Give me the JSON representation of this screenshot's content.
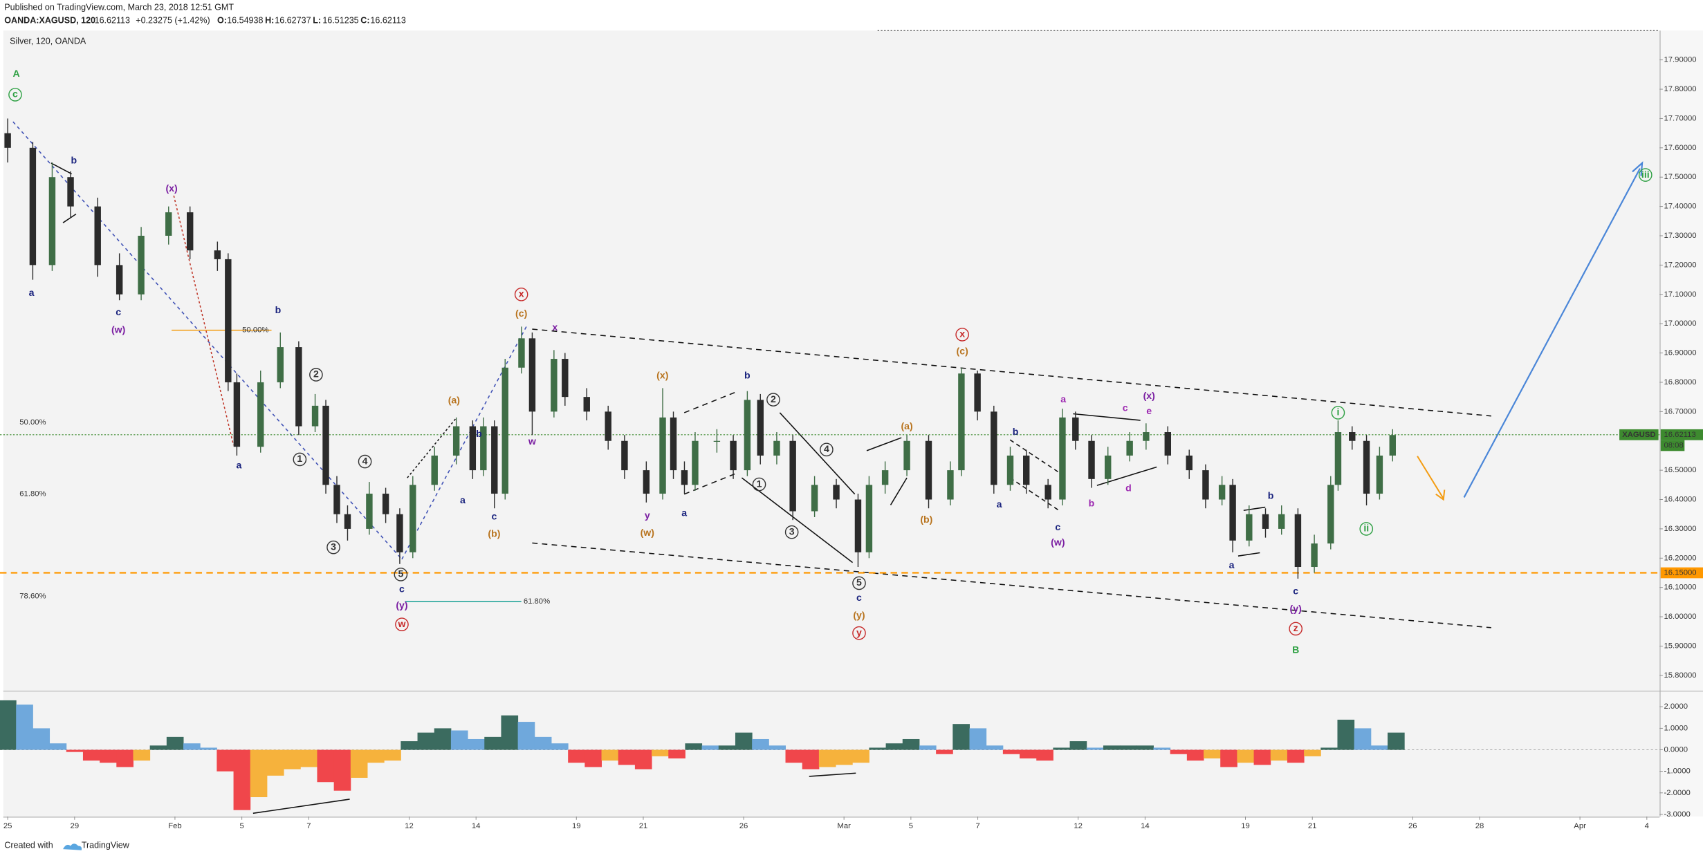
{
  "header": {
    "published": "Published on TradingView.com, March 23, 2018 12:51 GMT",
    "symbol": "OANDA:XAGUSD, 120",
    "last": "16.62113",
    "change": "+0.23275 (+1.42%)",
    "ohlc": [
      {
        "label": "O:",
        "value": "16.54938"
      },
      {
        "label": "H:",
        "value": "16.62737"
      },
      {
        "label": "L:",
        "value": "16.51235"
      },
      {
        "label": "C:",
        "value": "16.62113"
      }
    ],
    "pane_title": "Silver, 120, OANDA"
  },
  "footer": {
    "created": "Created with",
    "brand": "TradingView"
  },
  "chart_data": [
    {
      "type": "candlestick",
      "title": "Silver, 120, OANDA",
      "x": [
        0,
        0.75,
        1.33,
        1.88,
        2.69,
        3.34,
        3.99,
        4.81,
        5.45,
        6.27,
        6.59,
        6.85,
        7.56,
        8.15,
        8.7,
        9.19,
        9.51,
        9.84,
        10.16,
        10.81,
        11.3,
        11.72,
        12.11,
        12.76,
        13.41,
        13.9,
        14.22,
        14.55,
        14.87,
        15.36,
        15.68,
        16.33,
        16.66,
        17.31,
        17.95,
        18.44,
        19.09,
        19.58,
        19.9,
        20.23,
        20.55,
        21.2,
        21.69,
        22.11,
        22.5,
        22.99,
        23.47,
        24.12,
        24.77,
        25.42,
        25.75,
        26.23,
        26.88,
        27.53,
        28.18,
        28.51,
        28.99,
        29.48,
        29.97,
        30.45,
        31.1,
        31.53,
        31.92,
        32.4,
        32.89,
        33.54,
        34.03,
        34.68,
        35.32,
        35.81,
        36.3,
        36.62,
        37.11,
        37.6,
        38.08,
        38.57,
        39.06,
        39.55,
        39.77,
        40.19,
        40.62,
        41.01,
        41.4
      ],
      "open": [
        17.65,
        17.6,
        17.2,
        17.5,
        17.4,
        17.2,
        17.1,
        17.3,
        17.38,
        17.25,
        17.22,
        16.8,
        16.58,
        16.8,
        16.92,
        16.65,
        16.72,
        16.45,
        16.35,
        16.3,
        16.42,
        16.35,
        16.22,
        16.45,
        16.55,
        16.65,
        16.5,
        16.65,
        16.42,
        16.85,
        16.95,
        16.7,
        16.88,
        16.75,
        16.7,
        16.6,
        16.5,
        16.42,
        16.68,
        16.5,
        16.45,
        16.6,
        16.6,
        16.5,
        16.74,
        16.55,
        16.6,
        16.36,
        16.45,
        16.4,
        16.22,
        16.45,
        16.5,
        16.6,
        16.4,
        16.5,
        16.83,
        16.7,
        16.45,
        16.55,
        16.45,
        16.4,
        16.68,
        16.6,
        16.47,
        16.55,
        16.6,
        16.63,
        16.55,
        16.5,
        16.4,
        16.45,
        16.26,
        16.35,
        16.3,
        16.35,
        16.17,
        16.25,
        16.45,
        16.63,
        16.6,
        16.42,
        16.55
      ],
      "high": [
        17.7,
        17.62,
        17.55,
        17.52,
        17.43,
        17.24,
        17.33,
        17.4,
        17.4,
        17.28,
        17.24,
        16.83,
        16.84,
        16.97,
        16.94,
        16.76,
        16.74,
        16.48,
        16.38,
        16.46,
        16.44,
        16.37,
        16.48,
        16.58,
        16.68,
        16.67,
        16.68,
        16.67,
        16.88,
        16.99,
        16.97,
        16.91,
        16.9,
        16.78,
        16.72,
        16.62,
        16.53,
        16.78,
        16.7,
        16.53,
        16.63,
        16.64,
        16.62,
        16.77,
        16.76,
        16.63,
        16.62,
        16.48,
        16.47,
        16.42,
        16.48,
        16.53,
        16.62,
        16.62,
        16.53,
        16.85,
        16.84,
        16.72,
        16.58,
        16.57,
        16.47,
        16.71,
        16.7,
        16.62,
        16.58,
        16.63,
        16.66,
        16.65,
        16.57,
        16.52,
        16.48,
        16.47,
        16.38,
        16.37,
        16.38,
        16.37,
        16.28,
        16.48,
        16.67,
        16.65,
        16.62,
        16.58,
        16.64
      ],
      "low": [
        17.55,
        17.15,
        17.18,
        17.36,
        17.16,
        17.08,
        17.08,
        17.27,
        17.22,
        17.18,
        16.77,
        16.55,
        16.56,
        16.78,
        16.62,
        16.63,
        16.42,
        16.32,
        16.26,
        16.28,
        16.32,
        16.18,
        16.2,
        16.43,
        16.52,
        16.47,
        16.48,
        16.37,
        16.4,
        16.83,
        16.62,
        16.68,
        16.72,
        16.67,
        16.57,
        16.47,
        16.39,
        16.4,
        16.47,
        16.42,
        16.43,
        16.56,
        16.47,
        16.48,
        16.52,
        16.52,
        16.33,
        16.34,
        16.37,
        16.17,
        16.2,
        16.42,
        16.48,
        16.37,
        16.38,
        16.48,
        16.67,
        16.42,
        16.43,
        16.42,
        16.37,
        16.38,
        16.57,
        16.44,
        16.45,
        16.53,
        16.57,
        16.52,
        16.47,
        16.37,
        16.38,
        16.22,
        16.24,
        16.27,
        16.28,
        16.13,
        16.15,
        16.23,
        16.43,
        16.57,
        16.38,
        16.4,
        16.53
      ],
      "close": [
        17.6,
        17.2,
        17.5,
        17.4,
        17.2,
        17.1,
        17.3,
        17.38,
        17.25,
        17.22,
        16.8,
        16.58,
        16.8,
        16.92,
        16.65,
        16.72,
        16.45,
        16.35,
        16.3,
        16.42,
        16.35,
        16.22,
        16.45,
        16.55,
        16.65,
        16.5,
        16.65,
        16.42,
        16.85,
        16.95,
        16.7,
        16.88,
        16.75,
        16.7,
        16.6,
        16.5,
        16.42,
        16.68,
        16.5,
        16.45,
        16.6,
        16.6,
        16.5,
        16.74,
        16.55,
        16.6,
        16.36,
        16.45,
        16.4,
        16.22,
        16.45,
        16.5,
        16.6,
        16.4,
        16.5,
        16.83,
        16.7,
        16.45,
        16.55,
        16.45,
        16.4,
        16.68,
        16.6,
        16.47,
        16.55,
        16.6,
        16.63,
        16.55,
        16.5,
        16.4,
        16.45,
        16.26,
        16.35,
        16.3,
        16.35,
        16.17,
        16.25,
        16.45,
        16.63,
        16.6,
        16.42,
        16.55,
        16.62
      ],
      "up_color": "#3f6e46",
      "down_color": "#2b2b2b",
      "xlim": [
        -0.23,
        49.38
      ],
      "xticks": [
        {
          "value": 0,
          "label": "25"
        },
        {
          "value": 2,
          "label": "29"
        },
        {
          "value": 5,
          "label": "Feb"
        },
        {
          "value": 7,
          "label": "5"
        },
        {
          "value": 9,
          "label": "7"
        },
        {
          "value": 12,
          "label": "12"
        },
        {
          "value": 14,
          "label": "14"
        },
        {
          "value": 17,
          "label": "19"
        },
        {
          "value": 19,
          "label": "21"
        },
        {
          "value": 22,
          "label": "26"
        },
        {
          "value": 25,
          "label": "Mar"
        },
        {
          "value": 27,
          "label": "5"
        },
        {
          "value": 29,
          "label": "7"
        },
        {
          "value": 32,
          "label": "12"
        },
        {
          "value": 34,
          "label": "14"
        },
        {
          "value": 37,
          "label": "19"
        },
        {
          "value": 39,
          "label": "21"
        },
        {
          "value": 42,
          "label": "26"
        },
        {
          "value": 44,
          "label": "28"
        },
        {
          "value": 47,
          "label": "Apr"
        },
        {
          "value": 49,
          "label": "4"
        }
      ],
      "ylim": [
        15.748,
        18.0
      ],
      "yticks": [
        {
          "value": 15.8,
          "label": "15.80000"
        },
        {
          "value": 15.9,
          "label": "15.90000"
        },
        {
          "value": 16.0,
          "label": "16.00000"
        },
        {
          "value": 16.1,
          "label": "16.10000"
        },
        {
          "value": 16.2,
          "label": "16.20000"
        },
        {
          "value": 16.3,
          "label": "16.30000"
        },
        {
          "value": 16.4,
          "label": "16.40000"
        },
        {
          "value": 16.5,
          "label": "16.50000"
        },
        {
          "value": 16.7,
          "label": "16.70000"
        },
        {
          "value": 16.8,
          "label": "16.80000"
        },
        {
          "value": 16.9,
          "label": "16.90000"
        },
        {
          "value": 17.0,
          "label": "17.00000"
        },
        {
          "value": 17.1,
          "label": "17.10000"
        },
        {
          "value": 17.2,
          "label": "17.20000"
        },
        {
          "value": 17.3,
          "label": "17.30000"
        },
        {
          "value": 17.4,
          "label": "17.40000"
        },
        {
          "value": 17.5,
          "label": "17.50000"
        },
        {
          "value": 17.6,
          "label": "17.60000"
        },
        {
          "value": 17.7,
          "label": "17.70000"
        },
        {
          "value": 17.8,
          "label": "17.80000"
        },
        {
          "value": 17.9,
          "label": "17.90000"
        }
      ],
      "grid": false,
      "last_price": {
        "value": 16.62113,
        "label": "16.62113",
        "symbol": "XAGUSD",
        "countdown": "08:08",
        "color": "#3d8a2f"
      },
      "levels": [
        {
          "value": 16.15,
          "label": "16.15000",
          "color": "#ff9800"
        }
      ],
      "fib_labels": [
        {
          "text": "50.00%",
          "color": "#f39c12"
        },
        {
          "text": "61.80%",
          "color": "#3f51b5"
        },
        {
          "text": "78.60%",
          "color": "#e53935"
        },
        {
          "text": "50.00%",
          "color": "#f39c12"
        },
        {
          "text": "61.80%",
          "color": "#26a69a"
        }
      ],
      "annotations": [
        {
          "text": "A",
          "color": "#2ea043"
        },
        {
          "text": "c",
          "color": "#2ea043",
          "circled": true
        },
        {
          "text": "a",
          "color": "#1a237e"
        },
        {
          "text": "b",
          "color": "#1a237e"
        },
        {
          "text": "c",
          "color": "#1a237e"
        },
        {
          "text": "(w)",
          "color": "#7b1fa2"
        },
        {
          "text": "(x)",
          "color": "#7b1fa2"
        },
        {
          "text": "a",
          "color": "#1a237e"
        },
        {
          "text": "b",
          "color": "#1a237e"
        },
        {
          "text": "1",
          "color": "#333333",
          "circled": true
        },
        {
          "text": "2",
          "color": "#333333",
          "circled": true
        },
        {
          "text": "3",
          "color": "#333333",
          "circled": true
        },
        {
          "text": "4",
          "color": "#333333",
          "circled": true
        },
        {
          "text": "5",
          "color": "#333333",
          "circled": true
        },
        {
          "text": "c",
          "color": "#1a237e"
        },
        {
          "text": "(y)",
          "color": "#7b1fa2"
        },
        {
          "text": "w",
          "color": "#c62828",
          "circled": true
        },
        {
          "text": "(a)",
          "color": "#b8731d"
        },
        {
          "text": "b",
          "color": "#1a237e"
        },
        {
          "text": "a",
          "color": "#1a237e"
        },
        {
          "text": "c",
          "color": "#1a237e"
        },
        {
          "text": "(b)",
          "color": "#b8731d"
        },
        {
          "text": "x",
          "color": "#c62828",
          "circled": true
        },
        {
          "text": "(c)",
          "color": "#b8731d"
        },
        {
          "text": "x",
          "color": "#7b1fa2"
        },
        {
          "text": "w",
          "color": "#7b1fa2"
        },
        {
          "text": "(x)",
          "color": "#b8731d"
        },
        {
          "text": "y",
          "color": "#7b1fa2"
        },
        {
          "text": "(w)",
          "color": "#b8731d"
        },
        {
          "text": "a",
          "color": "#1a237e"
        },
        {
          "text": "b",
          "color": "#1a237e"
        },
        {
          "text": "2",
          "color": "#333333",
          "circled": true
        },
        {
          "text": "1",
          "color": "#333333",
          "circled": true
        },
        {
          "text": "3",
          "color": "#333333",
          "circled": true
        },
        {
          "text": "4",
          "color": "#333333",
          "circled": true
        },
        {
          "text": "5",
          "color": "#333333",
          "circled": true
        },
        {
          "text": "c",
          "color": "#1a237e"
        },
        {
          "text": "(y)",
          "color": "#b8731d"
        },
        {
          "text": "y",
          "color": "#c62828",
          "circled": true
        },
        {
          "text": "(a)",
          "color": "#b8731d"
        },
        {
          "text": "(b)",
          "color": "#b8731d"
        },
        {
          "text": "x",
          "color": "#c62828",
          "circled": true
        },
        {
          "text": "(c)",
          "color": "#b8731d"
        },
        {
          "text": "b",
          "color": "#1a237e"
        },
        {
          "text": "a",
          "color": "#1a237e"
        },
        {
          "text": "c",
          "color": "#1a237e"
        },
        {
          "text": "(w)",
          "color": "#7b1fa2"
        },
        {
          "text": "a",
          "color": "#9c27b0"
        },
        {
          "text": "b",
          "color": "#9c27b0"
        },
        {
          "text": "c",
          "color": "#9c27b0"
        },
        {
          "text": "(x)",
          "color": "#7b1fa2"
        },
        {
          "text": "e",
          "color": "#9c27b0"
        },
        {
          "text": "d",
          "color": "#9c27b0"
        },
        {
          "text": "b",
          "color": "#1a237e"
        },
        {
          "text": "a",
          "color": "#1a237e"
        },
        {
          "text": "c",
          "color": "#1a237e"
        },
        {
          "text": "(y)",
          "color": "#7b1fa2"
        },
        {
          "text": "z",
          "color": "#c62828",
          "circled": true
        },
        {
          "text": "B",
          "color": "#2ea043"
        },
        {
          "text": "i",
          "color": "#2ea043",
          "circled": true
        },
        {
          "text": "ii",
          "color": "#2ea043",
          "circled": true
        },
        {
          "text": "iii",
          "color": "#2ea043",
          "circled": true
        }
      ]
    },
    {
      "type": "area",
      "x": [
        0,
        0.5,
        1,
        1.5,
        2,
        2.5,
        3,
        3.5,
        4,
        4.5,
        5,
        5.5,
        6,
        6.5,
        7,
        7.5,
        8,
        8.5,
        9,
        9.5,
        10,
        10.5,
        11,
        11.5,
        12,
        12.5,
        13,
        13.5,
        14,
        14.5,
        15,
        15.5,
        16,
        16.5,
        17,
        17.5,
        18,
        18.5,
        19,
        19.5,
        20,
        20.5,
        21,
        21.5,
        22,
        22.5,
        23,
        23.5,
        24,
        24.5,
        25,
        25.5,
        26,
        26.5,
        27,
        27.5,
        28,
        28.5,
        29,
        29.5,
        30,
        30.5,
        31,
        31.5,
        32,
        32.5,
        33,
        33.5,
        34,
        34.5,
        35,
        35.5,
        36,
        36.5,
        37,
        37.5,
        38,
        38.5,
        39,
        39.5,
        40,
        40.5,
        41,
        41.5
      ],
      "values": [
        2.3,
        2.1,
        1.0,
        0.3,
        -0.1,
        -0.5,
        -0.6,
        -0.8,
        -0.5,
        0.2,
        0.6,
        0.3,
        0.1,
        -1.0,
        -2.8,
        -2.2,
        -1.2,
        -0.9,
        -0.8,
        -1.5,
        -1.9,
        -1.3,
        -0.6,
        -0.5,
        0.4,
        0.8,
        1.0,
        0.9,
        0.5,
        0.6,
        1.6,
        1.3,
        0.6,
        0.3,
        -0.6,
        -0.8,
        -0.5,
        -0.7,
        -0.9,
        -0.3,
        -0.4,
        0.3,
        0.2,
        0.2,
        0.8,
        0.5,
        0.2,
        -0.6,
        -0.9,
        -0.8,
        -0.7,
        -0.6,
        0.1,
        0.3,
        0.5,
        0.2,
        -0.2,
        1.2,
        1.0,
        0.2,
        -0.2,
        -0.4,
        -0.5,
        0.1,
        0.4,
        0.1,
        0.2,
        0.2,
        0.2,
        0.1,
        -0.2,
        -0.5,
        -0.4,
        -0.8,
        -0.6,
        -0.7,
        -0.5,
        -0.6,
        -0.3,
        0.1,
        1.4,
        1.0,
        0.2,
        0.8
      ],
      "colors": {
        "pos_rising": "#3b6b5f",
        "pos_falling": "#6fa8dc",
        "neg_falling": "#f0464b",
        "neg_rising": "#f6b23c"
      },
      "xlim": [
        -0.23,
        49.38
      ],
      "ylim": [
        -3.1,
        2.7
      ],
      "yticks": [
        {
          "value": 2,
          "label": "2.0000"
        },
        {
          "value": 1,
          "label": "1.0000"
        },
        {
          "value": 0,
          "label": "0.0000"
        },
        {
          "value": -1,
          "label": "-1.0000"
        },
        {
          "value": -2,
          "label": "-2.0000"
        },
        {
          "value": -3,
          "label": "-3.0000"
        }
      ]
    }
  ]
}
